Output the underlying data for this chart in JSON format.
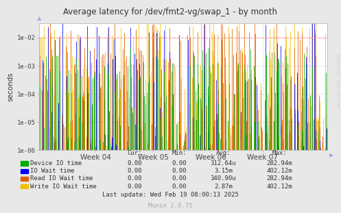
{
  "title": "Average latency for /dev/fmt2-vg/swap_1 - by month",
  "ylabel": "seconds",
  "xlabel_ticks": [
    "Week 04",
    "Week 05",
    "Week 06",
    "Week 07"
  ],
  "xlabel_tick_positions": [
    0.195,
    0.395,
    0.595,
    0.775
  ],
  "bg_color": "#e8e8e8",
  "plot_bg_color": "#ffffff",
  "grid_color": "#cccccc",
  "grid_dotted_color": "#bbbbbb",
  "limit_line_color": "#ff9999",
  "title_color": "#333333",
  "rrdtool_text_color": "#cccccc",
  "legend": [
    {
      "label": "Device IO time",
      "color": "#00aa00"
    },
    {
      "label": "IO Wait time",
      "color": "#0000ff"
    },
    {
      "label": "Read IO Wait time",
      "color": "#e06000"
    },
    {
      "label": "Write IO Wait time",
      "color": "#f0c000"
    }
  ],
  "stats": {
    "headers": [
      "Cur:",
      "Min:",
      "Avg:",
      "Max:"
    ],
    "rows": [
      [
        "Device IO time",
        "0.00",
        "0.00",
        "312.64u",
        "282.94m"
      ],
      [
        "IO Wait time",
        "0.00",
        "0.00",
        "3.15m",
        "402.12m"
      ],
      [
        "Read IO Wait time",
        "0.00",
        "0.00",
        "340.90u",
        "282.94m"
      ],
      [
        "Write IO Wait time",
        "0.00",
        "0.00",
        "2.87m",
        "402.12m"
      ]
    ]
  },
  "last_update": "Last update: Wed Feb 19 08:00:13 2025",
  "munin_version": "Munin 2.0.75",
  "seed": 42,
  "n_points": 350
}
